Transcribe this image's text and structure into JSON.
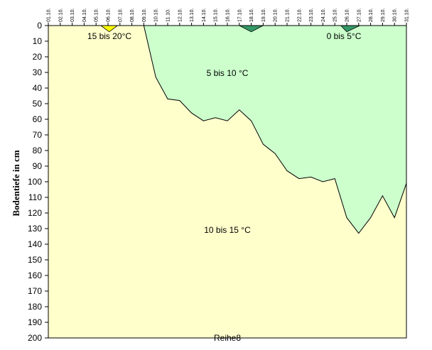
{
  "chart_data": {
    "type": "area",
    "ylabel": "Bodentiefe in cm",
    "xlabel": "",
    "y_inverted": true,
    "ylim": [
      0,
      200
    ],
    "ytick_step": 10,
    "grid": false,
    "categories": [
      "01.10.",
      "02.10.",
      "03.10.",
      "04.10.",
      "05.10.",
      "06.10.",
      "07.10.",
      "08.10.",
      "09.10.",
      "10.10.",
      "11.10.",
      "12.10.",
      "13.10.",
      "14.10.",
      "15.10.",
      "16.10.",
      "17.10.",
      "18.10.",
      "19.10.",
      "20.10.",
      "21.10.",
      "22.10.",
      "23.10.",
      "24.10.",
      "25.10.",
      "26.10.",
      "27.10.",
      "28.10.",
      "29.10.",
      "30.10.",
      "31.10."
    ],
    "isotherm_15C_depth_cm": [
      0,
      0,
      0,
      0,
      0,
      0,
      0,
      0,
      0,
      33,
      47,
      48,
      56,
      61,
      59,
      61,
      54,
      61,
      76,
      82,
      93,
      98,
      97,
      100,
      98,
      123,
      133,
      123,
      109,
      123,
      101
    ],
    "zones": [
      {
        "label": "5 bis 10 °C",
        "color": "#ccffcc"
      },
      {
        "label": "10 bis 15 °C",
        "color": "#ffffcc"
      },
      {
        "label": "15 bis 20°C",
        "color": "#ffff00"
      },
      {
        "label": "0 bis 5°C",
        "color": "#339966"
      }
    ],
    "warm_zone_15_20": {
      "days": [
        5.4,
        6.1,
        6.8
      ],
      "depth_cm": [
        0,
        4,
        0
      ]
    },
    "cold_zones_0_5": [
      {
        "days": [
          17.0,
          18.0,
          19.0
        ],
        "depth_cm": [
          0,
          4,
          0
        ]
      },
      {
        "days": [
          25.5,
          26.0,
          27.1
        ],
        "depth_cm": [
          0,
          4,
          0
        ]
      }
    ],
    "series_label": "Reihe8",
    "line_color": "#000000"
  }
}
